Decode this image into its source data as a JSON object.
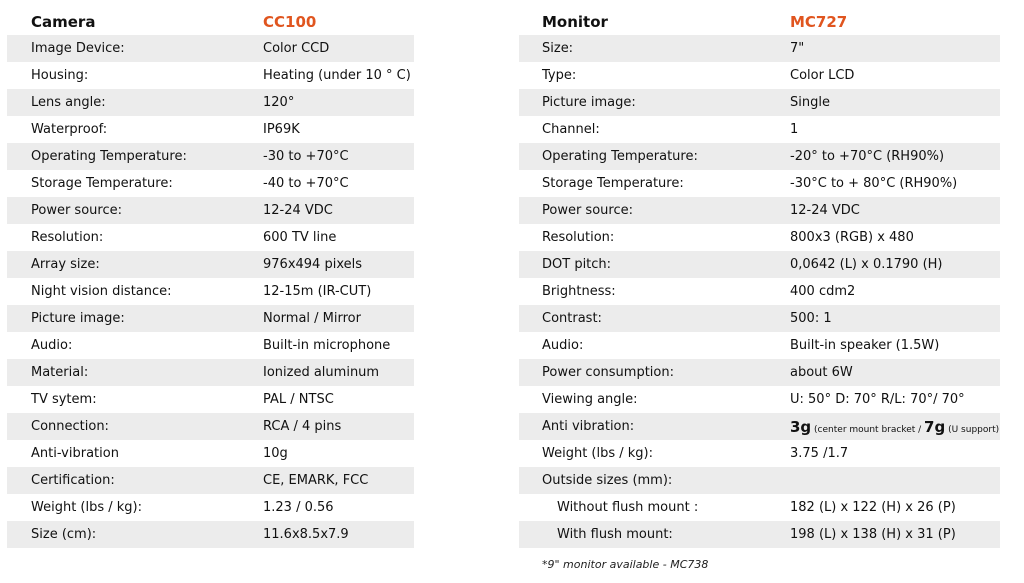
{
  "camera": {
    "title": "Camera",
    "model": "CC100",
    "rows": [
      {
        "label": "Image Device:",
        "value": "Color CCD"
      },
      {
        "label": "Housing:",
        "value": "Heating (under 10 ° C)"
      },
      {
        "label": "Lens angle:",
        "value": "120°"
      },
      {
        "label": "Waterproof:",
        "value": "IP69K"
      },
      {
        "label": "Operating Temperature:",
        "value": "-30 to +70°C"
      },
      {
        "label": "Storage Temperature:",
        "value": "-40 to +70°C"
      },
      {
        "label": "Power source:",
        "value": "12-24 VDC"
      },
      {
        "label": "Resolution:",
        "value": "600 TV line"
      },
      {
        "label": "Array size:",
        "value": "976x494 pixels"
      },
      {
        "label": "Night vision distance:",
        "value": "12-15m (IR-CUT)"
      },
      {
        "label": "Picture image:",
        "value": "Normal / Mirror"
      },
      {
        "label": "Audio:",
        "value": "Built-in microphone"
      },
      {
        "label": "Material:",
        "value": "Ionized aluminum"
      },
      {
        "label": "TV sytem:",
        "value": "PAL / NTSC"
      },
      {
        "label": "Connection:",
        "value": "RCA / 4 pins"
      },
      {
        "label": "Anti-vibration",
        "value": "10g"
      },
      {
        "label": "Certification:",
        "value": "CE, EMARK, FCC"
      },
      {
        "label": "Weight (lbs / kg):",
        "value": "1.23 / 0.56"
      },
      {
        "label": "Size (cm):",
        "value": "11.6x8.5x7.9"
      }
    ]
  },
  "monitor": {
    "title": "Monitor",
    "model": "MC727",
    "rows": [
      {
        "label": "Size:",
        "value": "7\""
      },
      {
        "label": "Type:",
        "value": "Color LCD"
      },
      {
        "label": "Picture image:",
        "value": "Single"
      },
      {
        "label": "Channel:",
        "value": "1"
      },
      {
        "label": "Operating Temperature:",
        "value": "-20° to +70°C  (RH90%)"
      },
      {
        "label": "Storage Temperature:",
        "value": "-30°C to + 80°C  (RH90%)"
      },
      {
        "label": "Power source:",
        "value": "12-24 VDC"
      },
      {
        "label": "Resolution:",
        "value": "800x3 (RGB) x 480"
      },
      {
        "label": "DOT pitch:",
        "value": "0,0642 (L) x 0.1790 (H)"
      },
      {
        "label": "Brightness:",
        "value": "400 cdm2"
      },
      {
        "label": "Contrast:",
        "value": "500: 1"
      },
      {
        "label": "Audio:",
        "value": "Built-in speaker (1.5W)"
      },
      {
        "label": "Power consumption:",
        "value": "about 6W"
      },
      {
        "label": "Viewing angle:",
        "value": "U: 50°    D: 70°   R/L: 70°/ 70°"
      },
      {
        "label": "Anti vibration:",
        "value": ""
      },
      {
        "label": "Weight (lbs / kg):",
        "value": "3.75  /1.7"
      },
      {
        "label": "Outside sizes (mm):",
        "value": ""
      },
      {
        "label": "Without flush mount    :",
        "value": "182 (L) x 122 (H) x 26 (P)"
      },
      {
        "label": "With flush mount:",
        "value": "198 (L) x 138 (H) x 31 (P)"
      }
    ],
    "anti_vibration": {
      "v1": "3g",
      "n1": " (center mount bracket / ",
      "v2": "7g",
      "n2": " (U support)"
    },
    "footnote": "*9\" monitor available - MC738"
  }
}
